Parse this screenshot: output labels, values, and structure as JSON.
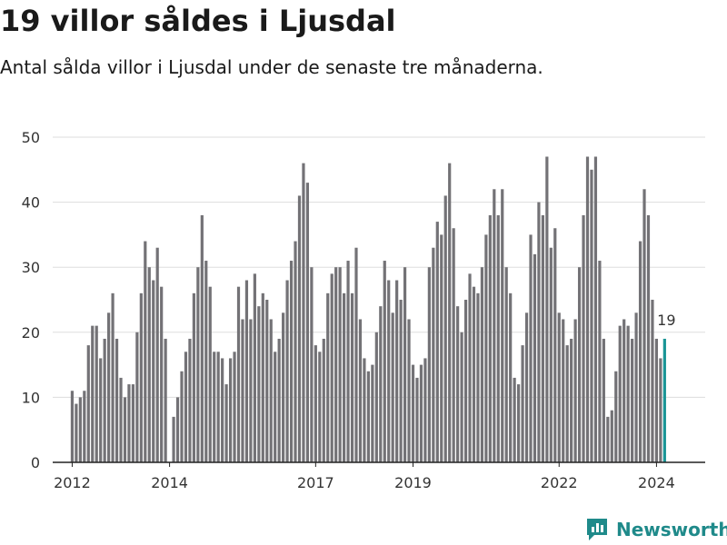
{
  "header": {
    "title": "19 villor såldes i Ljusdal",
    "subtitle": "Antal sålda villor i Ljusdal under de senaste tre månaderna."
  },
  "brand": {
    "name": "Newsworthy",
    "icon": "newsworthy-logo-icon",
    "color": "#1f8a8a"
  },
  "colors": {
    "bar": "#737276",
    "highlight": "#1a9596",
    "grid": "#dddddd",
    "axis": "#222222"
  },
  "chart_data": {
    "type": "bar",
    "title": "19 villor såldes i Ljusdal",
    "subtitle": "Antal sålda villor i Ljusdal under de senaste tre månaderna.",
    "xlabel": "",
    "ylabel": "",
    "ylim": [
      0,
      50
    ],
    "yticks": [
      0,
      10,
      20,
      30,
      40,
      50
    ],
    "grid": true,
    "x_range": [
      2011.6,
      2025.0
    ],
    "xtick_labels": [
      {
        "value": 2012,
        "label": "2012"
      },
      {
        "value": 2014,
        "label": "2014"
      },
      {
        "value": 2017,
        "label": "2017"
      },
      {
        "value": 2019,
        "label": "2019"
      },
      {
        "value": 2022,
        "label": "2022"
      },
      {
        "value": 2024,
        "label": "2024"
      }
    ],
    "start": "2012-01",
    "frequency": "monthly",
    "highlight_last": true,
    "last_label": "19",
    "values": [
      11,
      9,
      10,
      11,
      18,
      21,
      21,
      16,
      19,
      23,
      26,
      19,
      13,
      10,
      12,
      12,
      20,
      26,
      34,
      30,
      28,
      33,
      27,
      19,
      0,
      7,
      10,
      14,
      17,
      19,
      26,
      30,
      38,
      31,
      27,
      17,
      17,
      16,
      12,
      16,
      17,
      27,
      22,
      28,
      22,
      29,
      24,
      26,
      25,
      22,
      17,
      19,
      23,
      28,
      31,
      34,
      41,
      46,
      43,
      30,
      18,
      17,
      19,
      26,
      29,
      30,
      30,
      26,
      31,
      26,
      33,
      22,
      16,
      14,
      15,
      20,
      24,
      31,
      28,
      23,
      28,
      25,
      30,
      22,
      15,
      13,
      15,
      16,
      30,
      33,
      37,
      35,
      41,
      46,
      36,
      24,
      20,
      25,
      29,
      27,
      26,
      30,
      35,
      38,
      42,
      38,
      42,
      30,
      26,
      13,
      12,
      18,
      23,
      35,
      32,
      40,
      38,
      47,
      33,
      36,
      23,
      22,
      18,
      19,
      22,
      30,
      38,
      47,
      45,
      47,
      31,
      19,
      7,
      8,
      14,
      21,
      22,
      21,
      19,
      23,
      34,
      42,
      38,
      25,
      19,
      16,
      19
    ]
  }
}
